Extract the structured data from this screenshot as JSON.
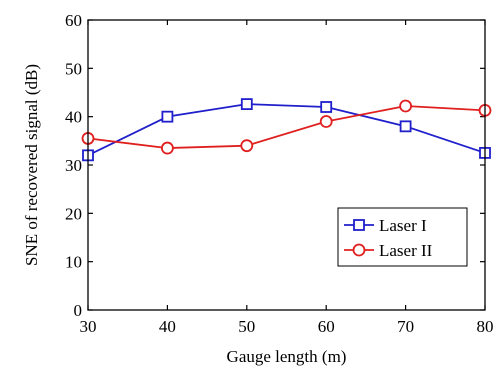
{
  "chart_data": {
    "type": "line",
    "title": "",
    "xlabel": "Gauge length (m)",
    "ylabel": "SNE of recovered signal (dB)",
    "x": [
      30,
      40,
      50,
      60,
      70,
      80
    ],
    "xlim": [
      30,
      80
    ],
    "ylim": [
      0,
      60
    ],
    "xticks": [
      "30",
      "40",
      "50",
      "60",
      "70",
      "80"
    ],
    "yticks": [
      "0",
      "10",
      "20",
      "30",
      "40",
      "50",
      "60"
    ],
    "grid": false,
    "legend_position": "bottom-right",
    "series": [
      {
        "name": "Laser I",
        "values": [
          32,
          40,
          42.6,
          42,
          38,
          32.5
        ],
        "color": "#1f1fcc",
        "marker": "square"
      },
      {
        "name": "Laser II",
        "values": [
          35.5,
          33.5,
          34,
          39,
          42.2,
          41.3
        ],
        "color": "#e01f1f",
        "marker": "circle"
      }
    ]
  }
}
